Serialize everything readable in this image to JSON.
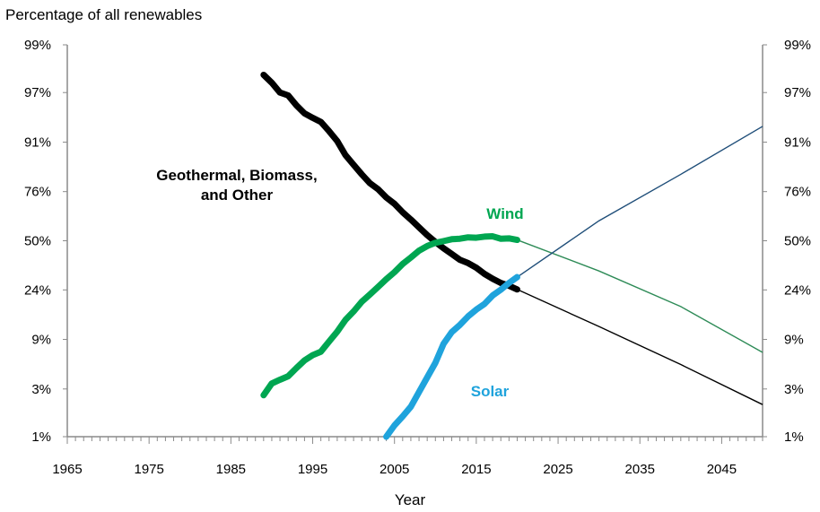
{
  "chart_data": {
    "type": "line",
    "title": "",
    "ylabel": "Percentage of all renewables",
    "xlabel": "Year",
    "xlim": [
      1965,
      2050
    ],
    "x_ticks": [
      "1965",
      "1975",
      "1985",
      "1995",
      "2005",
      "2015",
      "2025",
      "2035",
      "2045"
    ],
    "y_scale": "logit",
    "y_ticks": [
      "99%",
      "97%",
      "91%",
      "76%",
      "50%",
      "24%",
      "9%",
      "3%",
      "1%"
    ],
    "y_ticks_right": [
      "99%",
      "97%",
      "91%",
      "76%",
      "50%",
      "24%",
      "9%",
      "3%",
      "1%"
    ],
    "ylim": [
      1,
      99
    ],
    "grid": false,
    "annotations": [
      {
        "series": "geothermal",
        "text": "Geothermal, Biomass, and Other",
        "lines": [
          "Geothermal, Biomass,",
          "and Other"
        ]
      },
      {
        "series": "wind",
        "text": "Wind",
        "lines": [
          "Wind"
        ]
      },
      {
        "series": "solar",
        "text": "Solar",
        "lines": [
          "Solar"
        ]
      }
    ],
    "series": [
      {
        "key": "geothermal",
        "color": "#000000",
        "historical": {
          "x": [
            1989,
            1990,
            1991,
            1992,
            1993,
            1994,
            1995,
            1996,
            1997,
            1998,
            1999,
            2000,
            2001,
            2002,
            2003,
            2004,
            2005,
            2006,
            2007,
            2008,
            2009,
            2010,
            2011,
            2012,
            2013,
            2014,
            2015,
            2016,
            2017,
            2018,
            2019,
            2020
          ],
          "y": [
            98.0,
            97.6,
            97.0,
            96.8,
            96.0,
            95.2,
            94.7,
            94.2,
            92.9,
            91.2,
            88.2,
            85.6,
            82.6,
            79.4,
            77.0,
            73.4,
            70.4,
            66.1,
            62.2,
            57.8,
            53.3,
            49.3,
            45.6,
            42.3,
            39.0,
            37.2,
            34.7,
            31.5,
            29.1,
            27.1,
            25.8,
            24.2
          ]
        },
        "projection": {
          "x": [
            2020,
            2030,
            2040,
            2050
          ],
          "y": [
            24.2,
            11.8,
            5.2,
            2.1
          ]
        }
      },
      {
        "key": "wind",
        "color": "#00a651",
        "historical": {
          "x": [
            1989,
            1990,
            1991,
            1992,
            1993,
            1994,
            1995,
            1996,
            1997,
            1998,
            1999,
            2000,
            2001,
            2002,
            2003,
            2004,
            2005,
            2006,
            2007,
            2008,
            2009,
            2010,
            2011,
            2012,
            2013,
            2014,
            2015,
            2016,
            2017,
            2018,
            2019,
            2020
          ],
          "y": [
            2.6,
            3.4,
            3.7,
            4.0,
            4.8,
            5.7,
            6.4,
            6.9,
            8.6,
            10.6,
            13.5,
            16.0,
            19.3,
            22.1,
            25.3,
            28.9,
            32.4,
            36.7,
            40.3,
            44.2,
            46.9,
            48.8,
            49.8,
            50.9,
            51.2,
            52.0,
            51.8,
            52.4,
            52.6,
            51.2,
            51.4,
            50.5
          ]
        },
        "projection": {
          "x": [
            2020,
            2030,
            2040,
            2050
          ],
          "y": [
            50.5,
            33.0,
            17.6,
            6.8
          ]
        }
      },
      {
        "key": "solar",
        "color": "#1fa3dc",
        "historical": {
          "x": [
            2004,
            2005,
            2006,
            2007,
            2008,
            2009,
            2010,
            2011,
            2012,
            2013,
            2014,
            2015,
            2016,
            2017,
            2018,
            2019,
            2020
          ],
          "y": [
            1.0,
            1.3,
            1.6,
            2.0,
            2.8,
            3.9,
            5.4,
            8.2,
            10.5,
            12.2,
            14.5,
            16.6,
            18.5,
            21.7,
            24.1,
            27.1,
            29.9
          ]
        },
        "projection": {
          "x": [
            2020,
            2030,
            2040,
            2050
          ],
          "y": [
            29.9,
            61.5,
            82.6,
            93.6
          ]
        }
      }
    ]
  }
}
